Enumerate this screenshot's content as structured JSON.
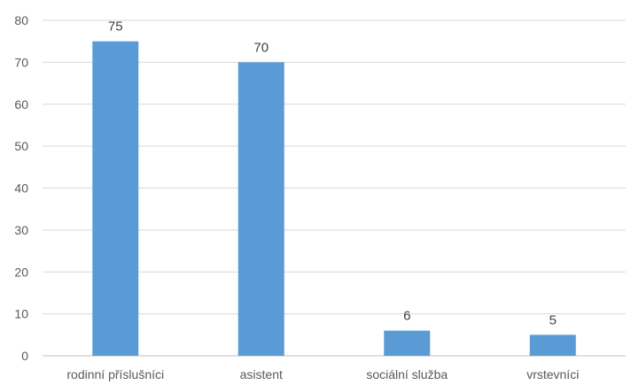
{
  "chart_data": {
    "type": "bar",
    "title": "",
    "xlabel": "",
    "ylabel": "",
    "categories": [
      "rodinní příslušníci",
      "asistent",
      "sociální služba",
      "vrstevníci"
    ],
    "values": [
      75,
      70,
      6,
      5
    ],
    "data_labels": [
      "75",
      "70",
      "6",
      "5"
    ],
    "ylim": [
      0,
      80
    ],
    "yticks": [
      0,
      10,
      20,
      30,
      40,
      50,
      60,
      70,
      80
    ],
    "ytick_labels": [
      "0",
      "10",
      "20",
      "30",
      "40",
      "50",
      "60",
      "70",
      "80"
    ],
    "grid": true,
    "legend": "none",
    "bar_color": "#5b9bd5"
  }
}
